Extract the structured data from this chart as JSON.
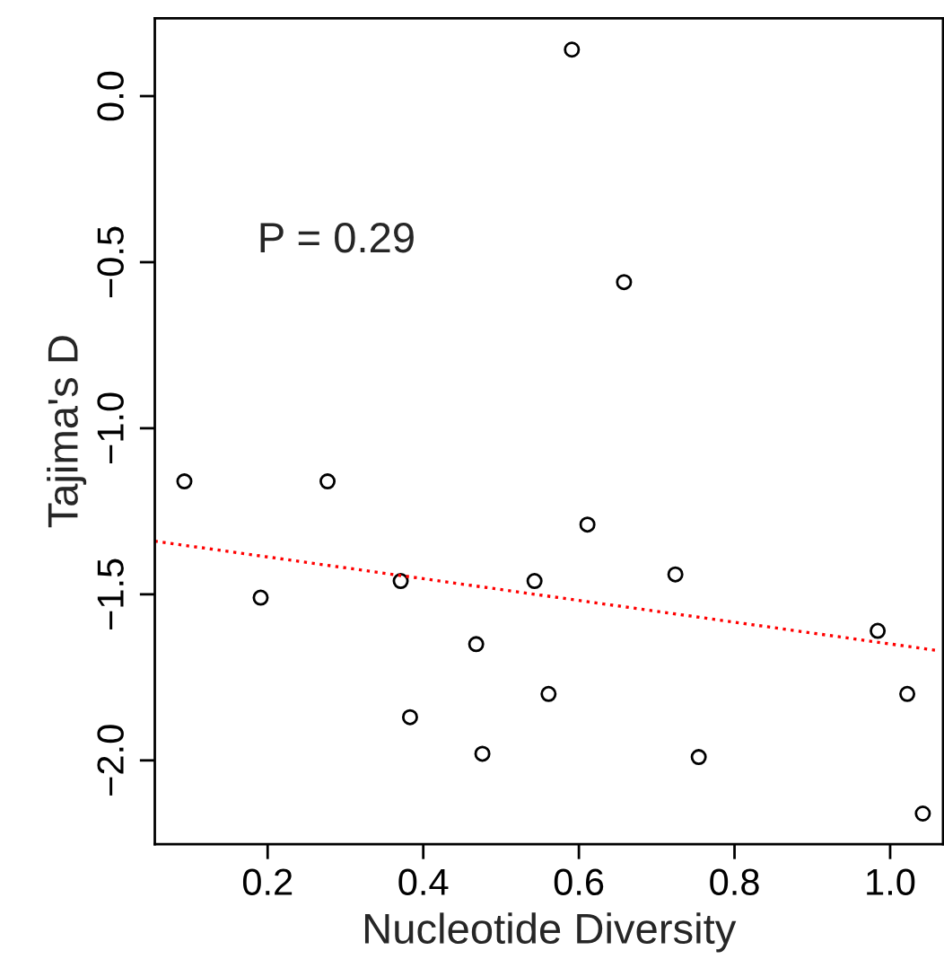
{
  "chart_data": {
    "type": "scatter",
    "xlabel": "Nucleotide Diversity",
    "ylabel": "Tajima's D",
    "annotations": [
      "P = 0.29"
    ],
    "xlim": [
      0.055,
      1.068
    ],
    "ylim": [
      -2.252,
      0.234
    ],
    "xticks": [
      {
        "value": 0.2,
        "label": "0.2"
      },
      {
        "value": 0.4,
        "label": "0.4"
      },
      {
        "value": 0.6,
        "label": "0.6"
      },
      {
        "value": 0.8,
        "label": "0.8"
      },
      {
        "value": 1.0,
        "label": "1.0"
      }
    ],
    "yticks": [
      {
        "value": 0.0,
        "label": "0.0"
      },
      {
        "value": -0.5,
        "label": "−0.5"
      },
      {
        "value": -1.0,
        "label": "−1.0"
      },
      {
        "value": -1.5,
        "label": "−1.5"
      },
      {
        "value": -2.0,
        "label": "−2.0"
      }
    ],
    "grid": false,
    "marker": "circle",
    "series": [
      {
        "color": "#000000",
        "x": [
          0.591,
          0.658,
          0.093,
          0.277,
          0.611,
          0.371,
          0.543,
          0.724,
          0.191,
          0.468,
          0.984,
          0.561,
          1.022,
          0.383,
          0.476,
          0.754,
          1.042
        ],
        "values": [
          0.14,
          -0.56,
          -1.16,
          -1.16,
          -1.29,
          -1.46,
          -1.46,
          -1.44,
          -1.51,
          -1.65,
          -1.61,
          -1.8,
          -1.8,
          -1.87,
          -1.98,
          -1.99,
          -2.16
        ]
      },
      {
        "type": "line",
        "color": "#ff0000",
        "line_style": "dotted",
        "marker": "none",
        "x": [
          0.055,
          1.063
        ],
        "values": [
          -1.34,
          -1.67
        ]
      }
    ]
  }
}
